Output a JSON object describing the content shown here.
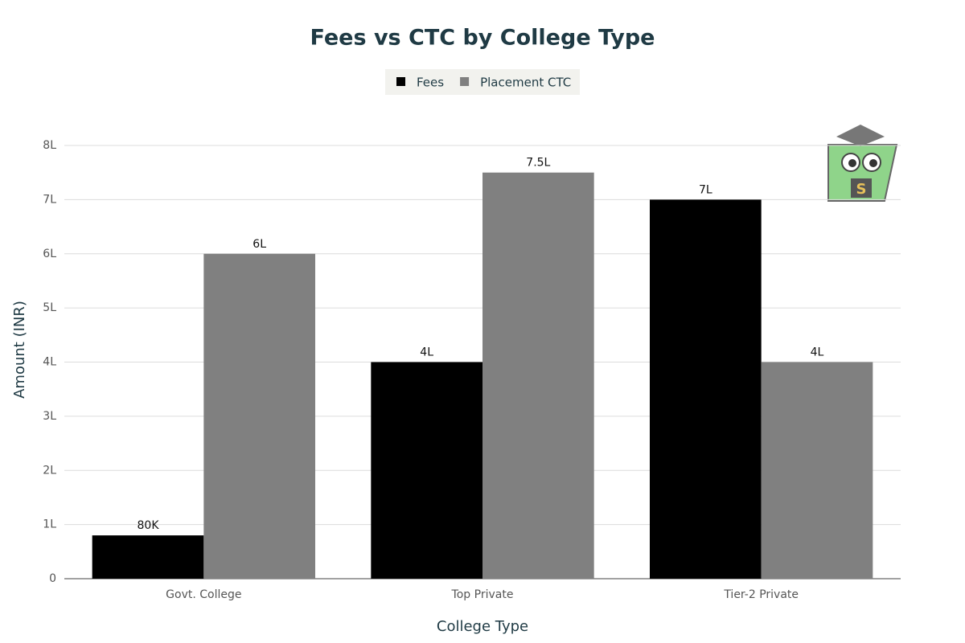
{
  "chart_data": {
    "type": "bar",
    "title": "Fees vs CTC by College Type",
    "x_label": "College Type",
    "y_label": "Amount (INR)",
    "categories": [
      "Govt. College",
      "Top Private",
      "Tier-2 Private"
    ],
    "series": [
      {
        "name": "Fees",
        "color": "#000000",
        "values": [
          80000,
          400000,
          700000
        ],
        "value_labels": [
          "80K",
          "4L",
          "7L"
        ]
      },
      {
        "name": "Placement CTC",
        "color": "#808080",
        "values": [
          600000,
          750000,
          400000
        ],
        "value_labels": [
          "6L",
          "7.5L",
          "4L"
        ]
      }
    ],
    "ylim": [
      0,
      800000
    ],
    "yticks": [
      0,
      {
        "value": 100000,
        "label": "1L"
      },
      {
        "value": 200000,
        "label": "2L"
      },
      {
        "value": 300000,
        "label": "3L"
      },
      {
        "value": 400000,
        "label": "4L"
      },
      {
        "value": 500000,
        "label": "5L"
      },
      {
        "value": 600000,
        "label": "6L"
      },
      {
        "value": 700000,
        "label": "7L"
      },
      {
        "value": 800000,
        "label": "8L"
      }
    ],
    "grid": true,
    "legend": "top"
  }
}
